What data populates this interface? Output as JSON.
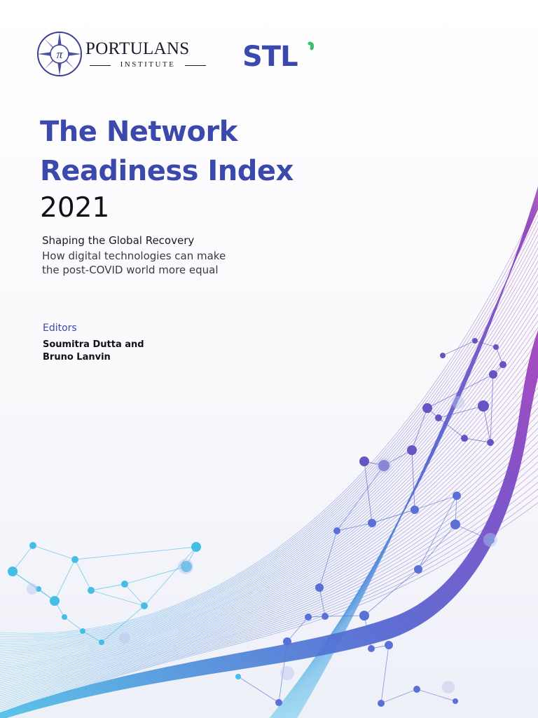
{
  "logos": {
    "portulans_name": "PORTULANS",
    "portulans_sub": "INSTITUTE",
    "portulans_symbol": "π",
    "stl_wordmark": "STL"
  },
  "cover": {
    "title_line1": "The Network",
    "title_line2": "Readiness Index",
    "year": "2021",
    "subtitle": "Shaping the Global Recovery",
    "tagline_line1": "How digital technologies can make",
    "tagline_line2": "the post-COVID world more equal",
    "editors_label": "Editors",
    "editors_line1": "Soumitra Dutta and",
    "editors_line2": "Bruno Lanvin"
  },
  "colors": {
    "title_blue": "#3b49ad",
    "stl_blue": "#3b49ad",
    "stl_green": "#3dbd6b",
    "wave_cyan": "#4fc3e8",
    "wave_blue": "#5064d0",
    "wave_purple": "#8a3cc0",
    "wave_magenta": "#b03cb8"
  }
}
